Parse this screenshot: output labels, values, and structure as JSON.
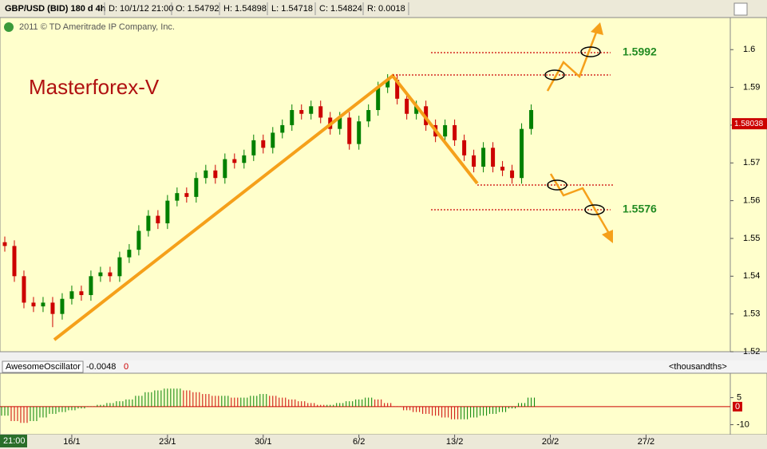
{
  "toolbar": {
    "symbol": "GBP/USD (BID) 180 d 4h",
    "date": "D: 10/1/12 21:00",
    "open": "O: 1.54792",
    "high": "H: 1.54898",
    "low": "L: 1.54718",
    "close": "C: 1.54824",
    "range": "R: 0.0018",
    "copyright": "2011 © TD Ameritrade IP Company, Inc.",
    "cursor_time": "21:00"
  },
  "chart_data": [
    {
      "type": "candlestick",
      "title": "Masterforex-V",
      "open": [
        1.549,
        1.548,
        1.54,
        1.533,
        1.532,
        1.533,
        1.53,
        1.534,
        1.536,
        1.535,
        1.54,
        1.541,
        1.54,
        1.545,
        1.547,
        1.552,
        1.556,
        1.554,
        1.56,
        1.562,
        1.561,
        1.566,
        1.568,
        1.566,
        1.571,
        1.57,
        1.572,
        1.576,
        1.574,
        1.578,
        1.58,
        1.584,
        1.583,
        1.585,
        1.582,
        1.579,
        1.582,
        1.575,
        1.581,
        1.584,
        1.59,
        1.592,
        1.587,
        1.583,
        1.585,
        1.58,
        1.577,
        1.58,
        1.576,
        1.572,
        1.569,
        1.574,
        1.569,
        1.568,
        1.566,
        1.579
      ],
      "high": [
        1.5505,
        1.5495,
        1.5415,
        1.5345,
        1.5345,
        1.5345,
        1.5355,
        1.5375,
        1.5375,
        1.5415,
        1.5425,
        1.5425,
        1.5465,
        1.5485,
        1.5535,
        1.5575,
        1.5575,
        1.5615,
        1.5635,
        1.5635,
        1.5675,
        1.5695,
        1.5695,
        1.5725,
        1.5725,
        1.5735,
        1.5775,
        1.5775,
        1.5795,
        1.5815,
        1.5855,
        1.5855,
        1.5865,
        1.5865,
        1.5835,
        1.5835,
        1.5835,
        1.5825,
        1.5855,
        1.5915,
        1.5935,
        1.5935,
        1.5885,
        1.5865,
        1.5865,
        1.5815,
        1.5815,
        1.5815,
        1.5775,
        1.5735,
        1.5755,
        1.5755,
        1.5705,
        1.5695,
        1.5805,
        1.5855
      ],
      "low": [
        1.5465,
        1.5385,
        1.5315,
        1.5305,
        1.5305,
        1.5265,
        1.5285,
        1.5325,
        1.5335,
        1.5335,
        1.5385,
        1.5385,
        1.5385,
        1.5435,
        1.5455,
        1.5505,
        1.5525,
        1.5525,
        1.5585,
        1.5595,
        1.5595,
        1.5645,
        1.5645,
        1.5645,
        1.5685,
        1.5685,
        1.5705,
        1.5725,
        1.5725,
        1.5765,
        1.5785,
        1.5815,
        1.5815,
        1.5805,
        1.5775,
        1.5775,
        1.5735,
        1.5735,
        1.5795,
        1.5825,
        1.5885,
        1.5855,
        1.5815,
        1.5815,
        1.5785,
        1.5755,
        1.5755,
        1.5745,
        1.5705,
        1.5675,
        1.5675,
        1.5675,
        1.5665,
        1.5645,
        1.5645,
        1.5775
      ],
      "close": [
        1.548,
        1.54,
        1.533,
        1.532,
        1.533,
        1.53,
        1.534,
        1.536,
        1.535,
        1.54,
        1.541,
        1.54,
        1.545,
        1.547,
        1.552,
        1.556,
        1.554,
        1.56,
        1.562,
        1.561,
        1.566,
        1.568,
        1.566,
        1.571,
        1.57,
        1.572,
        1.576,
        1.574,
        1.578,
        1.58,
        1.584,
        1.583,
        1.585,
        1.582,
        1.579,
        1.582,
        1.575,
        1.581,
        1.584,
        1.59,
        1.592,
        1.587,
        1.583,
        1.585,
        1.58,
        1.577,
        1.58,
        1.576,
        1.572,
        1.569,
        1.574,
        1.569,
        1.568,
        1.566,
        1.579,
        1.584
      ],
      "up_color": "#008000",
      "down_color": "#cc0000",
      "xlim": [
        -0.5,
        75.8
      ],
      "xticks": [
        {
          "value": 7,
          "label": "16/1"
        },
        {
          "value": 17,
          "label": "23/1"
        },
        {
          "value": 27,
          "label": "30/1"
        },
        {
          "value": 37,
          "label": "6/2"
        },
        {
          "value": 47,
          "label": "13/2"
        },
        {
          "value": 57,
          "label": "20/2"
        },
        {
          "value": 67,
          "label": "27/2"
        }
      ],
      "ylim": [
        1.52,
        1.6085
      ],
      "yticks": [
        1.52,
        1.53,
        1.54,
        1.55,
        1.56,
        1.57,
        1.58,
        1.59,
        1.6
      ],
      "levels": [
        1.5992,
        1.5576
      ],
      "level_color": "#228b22",
      "last_price": 1.58038
    },
    {
      "type": "histogram",
      "title": "AwesomeOscillator",
      "subtitle": "-0.0048",
      "value_marker": "0",
      "units": "<thousandths>",
      "values": [
        -5,
        -8,
        -9,
        -8,
        -6,
        -4,
        -3,
        -2,
        -1,
        0,
        1,
        2,
        3,
        4,
        6,
        8,
        9,
        10,
        10,
        9,
        8,
        7,
        6,
        6,
        5,
        5,
        6,
        7,
        6,
        5,
        4,
        3,
        2,
        1,
        1,
        2,
        3,
        4,
        5,
        4,
        2,
        0,
        -2,
        -3,
        -4,
        -5,
        -6,
        -7,
        -7,
        -6,
        -5,
        -4,
        -3,
        -1,
        2,
        5
      ],
      "up_color": "#008000",
      "down_color": "#cc0000",
      "xlim": [
        -0.5,
        75.8
      ],
      "ylim": [
        -15.5,
        18.5
      ],
      "yticks": [
        5,
        0,
        -10
      ]
    }
  ]
}
